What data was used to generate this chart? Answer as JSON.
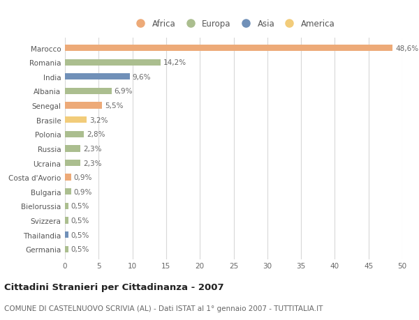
{
  "countries": [
    "Marocco",
    "Romania",
    "India",
    "Albania",
    "Senegal",
    "Brasile",
    "Polonia",
    "Russia",
    "Ucraina",
    "Costa d'Avorio",
    "Bulgaria",
    "Bielorussia",
    "Svizzera",
    "Thailandia",
    "Germania"
  ],
  "values": [
    48.6,
    14.2,
    9.6,
    6.9,
    5.5,
    3.2,
    2.8,
    2.3,
    2.3,
    0.9,
    0.9,
    0.5,
    0.5,
    0.5,
    0.5
  ],
  "labels": [
    "48,6%",
    "14,2%",
    "9,6%",
    "6,9%",
    "5,5%",
    "3,2%",
    "2,8%",
    "2,3%",
    "2,3%",
    "0,9%",
    "0,9%",
    "0,5%",
    "0,5%",
    "0,5%",
    "0,5%"
  ],
  "continents": [
    "Africa",
    "Europa",
    "Asia",
    "Europa",
    "Africa",
    "America",
    "Europa",
    "Europa",
    "Europa",
    "Africa",
    "Europa",
    "Europa",
    "Europa",
    "Asia",
    "Europa"
  ],
  "colors": {
    "Africa": "#EDAA78",
    "Europa": "#ABBE8F",
    "Asia": "#7090B8",
    "America": "#F2CC7A"
  },
  "title_bold": "Cittadini Stranieri per Cittadinanza - 2007",
  "subtitle": "COMUNE DI CASTELNUOVO SCRIVIA (AL) - Dati ISTAT al 1° gennaio 2007 - TUTTITALIA.IT",
  "xlim": [
    0,
    50
  ],
  "xticks": [
    0,
    5,
    10,
    15,
    20,
    25,
    30,
    35,
    40,
    45,
    50
  ],
  "background_color": "#ffffff",
  "grid_color": "#d8d8d8",
  "bar_height": 0.45,
  "label_fontsize": 7.5,
  "tick_fontsize": 7.5,
  "ytick_fontsize": 7.5,
  "title_fontsize": 9.5,
  "subtitle_fontsize": 7.5,
  "legend_fontsize": 8.5
}
